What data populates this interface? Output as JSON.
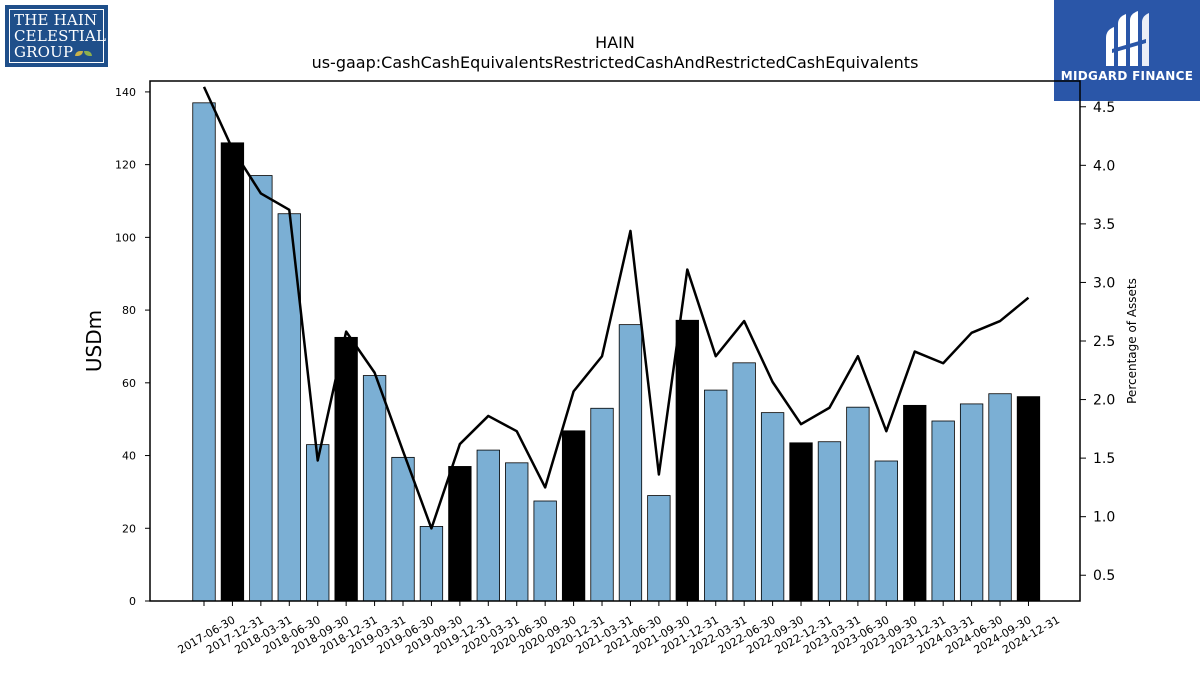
{
  "logos": {
    "hain": {
      "line1": "THE HAIN",
      "line2": "CELESTIAL",
      "line3": "GROUP",
      "bg_color": "#1f4f8a"
    },
    "midgard": {
      "text": "MIDGARD FINANCE",
      "bg_color": "#2a56a8"
    }
  },
  "chart_data": {
    "type": "bar",
    "title": "HAIN",
    "subtitle": "us-gaap:CashCashEquivalentsRestrictedCashAndRestrictedCashEquivalents",
    "ylabel": "USDm",
    "y2label": "Percentage of Assets",
    "ylim": [
      0,
      143
    ],
    "y2lim": [
      0.28,
      4.72
    ],
    "yticks": [
      0,
      20,
      40,
      60,
      80,
      100,
      120,
      140
    ],
    "y2ticks": [
      0.5,
      1.0,
      1.5,
      2.0,
      2.5,
      3.0,
      3.5,
      4.0,
      4.5
    ],
    "categories": [
      "2017-06-30",
      "2017-12-31",
      "2018-03-31",
      "2018-06-30",
      "2018-09-30",
      "2018-12-31",
      "2019-03-31",
      "2019-06-30",
      "2019-09-30",
      "2019-12-31",
      "2020-03-31",
      "2020-06-30",
      "2020-09-30",
      "2020-12-31",
      "2021-03-31",
      "2021-06-30",
      "2021-09-30",
      "2021-12-31",
      "2022-03-31",
      "2022-06-30",
      "2022-09-30",
      "2022-12-31",
      "2023-03-31",
      "2023-06-30",
      "2023-09-30",
      "2023-12-31",
      "2024-03-31",
      "2024-06-30",
      "2024-09-30",
      "2024-12-31"
    ],
    "series": [
      {
        "kind": "bar",
        "values": [
          137.0,
          126.0,
          117.0,
          106.5,
          43.0,
          72.5,
          62.0,
          39.5,
          20.5,
          37.0,
          41.5,
          38.0,
          27.5,
          46.8,
          53.0,
          76.0,
          29.0,
          77.2,
          58.0,
          65.5,
          51.8,
          43.5,
          43.8,
          53.3,
          38.5,
          53.8,
          49.5,
          54.2,
          57.0,
          56.2
        ]
      },
      {
        "kind": "line",
        "axis": "secondary",
        "values": [
          4.67,
          4.14,
          3.76,
          3.62,
          1.48,
          2.58,
          2.23,
          1.56,
          0.9,
          1.62,
          1.86,
          1.73,
          1.25,
          2.07,
          2.37,
          3.44,
          1.36,
          3.11,
          2.37,
          2.67,
          2.15,
          1.79,
          1.93,
          2.37,
          1.73,
          2.41,
          2.31,
          2.57,
          2.67,
          2.87
        ]
      }
    ],
    "bar_colors": {
      "default": "#7bafd4",
      "year_end": "#000000"
    },
    "line_color": "#000000",
    "grid": false,
    "legend": "none"
  }
}
